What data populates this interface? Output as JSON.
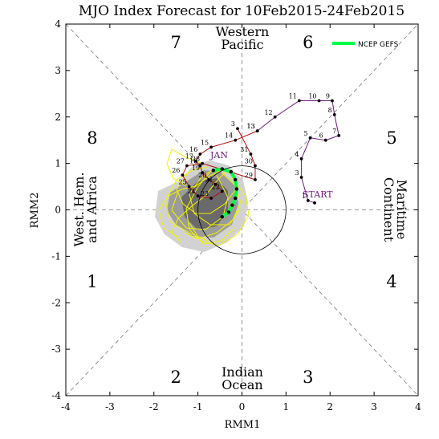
{
  "chart_data": {
    "type": "line",
    "title": "MJO Index Forecast for 10Feb2015-24Feb2015",
    "xlabel": "RMM1",
    "ylabel": "RMM2",
    "xlim": [
      -4,
      4
    ],
    "ylim": [
      -4,
      4
    ],
    "xticks": [
      "-4",
      "-3",
      "-2",
      "-1",
      "0",
      "1",
      "2",
      "3",
      "4"
    ],
    "yticks": [
      "-4",
      "-3",
      "-2",
      "-1",
      "0",
      "1",
      "2",
      "3",
      "4"
    ],
    "phases": [
      {
        "label": "1",
        "x": -3.4,
        "y": -1.55
      },
      {
        "label": "2",
        "x": -1.5,
        "y": -3.6
      },
      {
        "label": "3",
        "x": 1.5,
        "y": -3.6
      },
      {
        "label": "4",
        "x": 3.4,
        "y": -1.55
      },
      {
        "label": "5",
        "x": 3.4,
        "y": 1.55
      },
      {
        "label": "6",
        "x": 1.5,
        "y": 3.6
      },
      {
        "label": "7",
        "x": -1.5,
        "y": 3.6
      },
      {
        "label": "8",
        "x": -3.4,
        "y": 1.55
      }
    ],
    "regions": {
      "top": [
        "Western",
        "Pacific"
      ],
      "bottom": [
        "Indian",
        "Ocean"
      ],
      "left": [
        "West. Hem.",
        "and Africa"
      ],
      "right": [
        "Maritime",
        "Continent"
      ]
    },
    "legend": {
      "label": "NCEP GEFS",
      "color": "#00ff44"
    },
    "markers": {
      "start": "START",
      "jan": "JAN"
    },
    "series": [
      {
        "role": "observed",
        "color": "#6a1a7a",
        "points": [
          {
            "x": 1.65,
            "y": 0.15,
            "label": ""
          },
          {
            "x": 1.5,
            "y": 0.2,
            "label": "1"
          },
          {
            "x": 1.35,
            "y": 0.7,
            "label": "3"
          },
          {
            "x": 1.35,
            "y": 1.1,
            "label": "4"
          },
          {
            "x": 1.55,
            "y": 1.55,
            "label": "5"
          },
          {
            "x": 1.9,
            "y": 1.5,
            "label": "6"
          },
          {
            "x": 2.2,
            "y": 1.6,
            "label": "7"
          },
          {
            "x": 2.1,
            "y": 2.05,
            "label": "8"
          },
          {
            "x": 2.05,
            "y": 2.35,
            "label": "9"
          },
          {
            "x": 1.75,
            "y": 2.35,
            "label": "10"
          },
          {
            "x": 1.3,
            "y": 2.35,
            "label": "11"
          },
          {
            "x": 0.75,
            "y": 2.0,
            "label": "12"
          },
          {
            "x": 0.35,
            "y": 1.7,
            "label": "13"
          }
        ]
      },
      {
        "role": "recent",
        "color": "#b01010",
        "points": [
          {
            "x": 0.35,
            "y": 1.7,
            "label": "13"
          },
          {
            "x": -0.15,
            "y": 1.5,
            "label": "14"
          },
          {
            "x": -0.7,
            "y": 1.35,
            "label": "15"
          },
          {
            "x": -0.95,
            "y": 1.2,
            "label": "16"
          },
          {
            "x": -1.05,
            "y": 1.05,
            "label": "17"
          },
          {
            "x": -0.95,
            "y": 0.95,
            "label": "18"
          },
          {
            "x": -0.9,
            "y": 0.8,
            "label": "19"
          },
          {
            "x": -0.75,
            "y": 0.65,
            "label": "20"
          },
          {
            "x": -0.6,
            "y": 0.55,
            "label": "21"
          },
          {
            "x": -0.45,
            "y": 0.4,
            "label": "22"
          },
          {
            "x": -0.7,
            "y": 0.25,
            "label": "23"
          },
          {
            "x": -1.0,
            "y": 0.3,
            "label": "24"
          },
          {
            "x": -1.2,
            "y": 0.5,
            "label": "25"
          },
          {
            "x": -1.35,
            "y": 0.75,
            "label": "26"
          },
          {
            "x": -1.25,
            "y": 0.95,
            "label": "27"
          },
          {
            "x": -0.9,
            "y": 1.0,
            "label": "28"
          },
          {
            "x": 0.3,
            "y": 0.65,
            "label": "29"
          },
          {
            "x": 0.3,
            "y": 0.95,
            "label": "30"
          },
          {
            "x": 0.2,
            "y": 1.2,
            "label": "31"
          },
          {
            "x": -0.1,
            "y": 1.75,
            "label": "3"
          }
        ]
      },
      {
        "role": "ensemble_mean",
        "name": "NCEP GEFS",
        "color": "#00ff44",
        "points": [
          {
            "x": -0.65,
            "y": 0.85
          },
          {
            "x": -0.45,
            "y": 0.88
          },
          {
            "x": -0.25,
            "y": 0.82
          },
          {
            "x": -0.15,
            "y": 0.65
          },
          {
            "x": -0.12,
            "y": 0.45
          },
          {
            "x": -0.15,
            "y": 0.25
          },
          {
            "x": -0.22,
            "y": 0.1
          },
          {
            "x": -0.3,
            "y": -0.05
          },
          {
            "x": -0.45,
            "y": -0.15
          }
        ]
      }
    ]
  }
}
